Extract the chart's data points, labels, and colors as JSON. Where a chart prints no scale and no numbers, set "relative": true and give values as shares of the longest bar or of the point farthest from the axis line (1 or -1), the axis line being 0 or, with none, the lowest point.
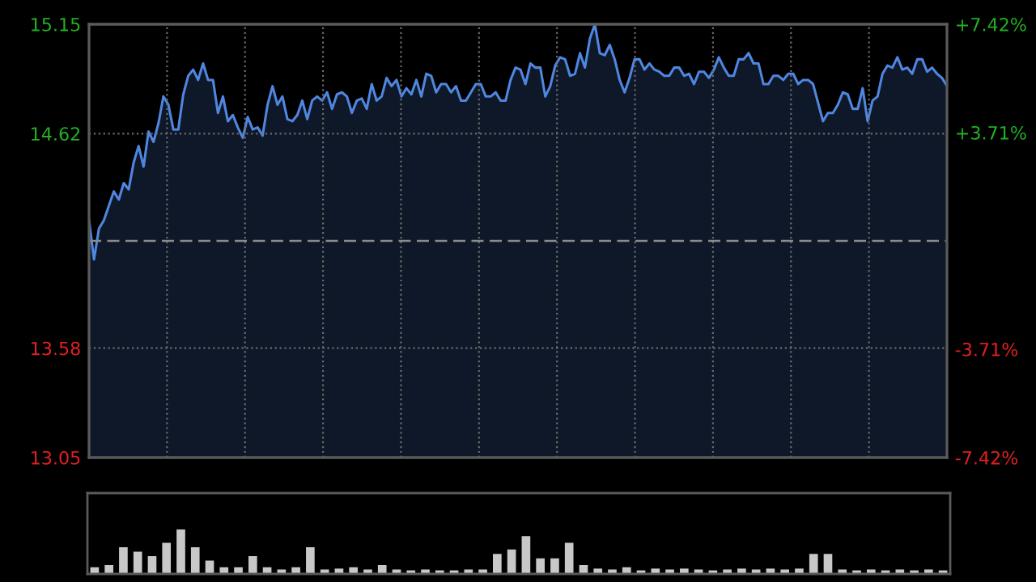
{
  "chart_data": [
    {
      "type": "area",
      "categories": [
        null,
        null,
        null,
        null,
        null,
        null,
        null,
        null,
        null,
        null,
        null,
        null,
        null,
        null,
        null,
        null,
        null,
        null,
        null,
        null,
        null,
        null,
        null,
        null,
        null,
        null,
        null,
        null,
        null,
        null,
        null,
        null,
        null,
        null,
        null,
        null,
        null,
        null,
        null,
        null,
        null,
        null,
        null,
        null,
        null,
        null,
        null,
        null,
        null,
        null,
        null,
        null,
        null,
        null,
        null,
        null,
        null,
        null,
        null,
        null,
        null,
        null,
        null,
        null,
        null,
        null,
        null,
        null,
        null,
        null,
        null,
        null,
        null,
        null,
        null,
        null,
        null,
        null,
        null,
        null,
        null,
        null,
        null,
        null,
        null,
        null,
        null,
        null,
        null,
        null,
        null,
        null,
        null,
        null,
        null,
        null,
        null,
        null,
        null,
        null,
        null,
        null,
        null,
        null,
        null,
        null,
        null,
        null,
        null,
        null,
        null,
        null,
        null,
        null,
        null,
        null,
        null,
        null,
        null,
        null,
        null,
        null,
        null,
        null,
        null,
        null,
        null,
        null,
        null,
        null,
        null,
        null,
        null,
        null,
        null,
        null,
        null,
        null,
        null,
        null,
        null,
        null,
        null,
        null,
        null,
        null,
        null,
        null,
        null,
        null,
        null,
        null,
        null,
        null,
        null,
        null,
        null,
        null,
        null,
        null,
        null,
        null,
        null,
        null,
        null,
        null,
        null,
        null,
        null,
        null,
        null,
        null,
        null,
        null
      ],
      "series": [
        {
          "color": "#4f86e0",
          "values": [
            14.2,
            14.01,
            14.16,
            14.2,
            14.27,
            14.34,
            14.3,
            14.38,
            14.35,
            14.48,
            14.56,
            14.46,
            14.63,
            14.58,
            14.67,
            14.8,
            14.76,
            14.64,
            14.64,
            14.81,
            14.9,
            14.93,
            14.88,
            14.96,
            14.88,
            14.88,
            14.72,
            14.8,
            14.68,
            14.71,
            14.65,
            14.6,
            14.7,
            14.64,
            14.65,
            14.61,
            14.76,
            14.85,
            14.76,
            14.8,
            14.69,
            14.68,
            14.71,
            14.78,
            14.69,
            14.78,
            14.8,
            14.78,
            14.82,
            14.74,
            14.81,
            14.82,
            14.8,
            14.72,
            14.78,
            14.79,
            14.74,
            14.86,
            14.78,
            14.8,
            14.89,
            14.85,
            14.88,
            14.8,
            14.84,
            14.81,
            14.88,
            14.8,
            14.91,
            14.9,
            14.82,
            14.86,
            14.86,
            14.82,
            14.85,
            14.78,
            14.78,
            14.82,
            14.86,
            14.86,
            14.8,
            14.8,
            14.82,
            14.78,
            14.78,
            14.88,
            14.94,
            14.93,
            14.86,
            14.96,
            14.94,
            14.94,
            14.8,
            14.85,
            14.95,
            14.99,
            14.98,
            14.9,
            14.91,
            15.01,
            14.94,
            15.08,
            15.15,
            15.01,
            15.0,
            15.05,
            14.98,
            14.88,
            14.82,
            14.89,
            14.98,
            14.98,
            14.93,
            14.96,
            14.93,
            14.92,
            14.9,
            14.9,
            14.94,
            14.94,
            14.9,
            14.91,
            14.86,
            14.92,
            14.92,
            14.89,
            14.93,
            14.99,
            14.94,
            14.9,
            14.9,
            14.98,
            14.98,
            15.01,
            14.96,
            14.96,
            14.86,
            14.86,
            14.9,
            14.9,
            14.88,
            14.91,
            14.91,
            14.86,
            14.88,
            14.88,
            14.86,
            14.77,
            14.68,
            14.72,
            14.72,
            14.76,
            14.82,
            14.81,
            14.74,
            14.74,
            14.84,
            14.68,
            14.78,
            14.8,
            14.91,
            14.95,
            14.94,
            14.99,
            14.93,
            14.94,
            14.91,
            14.98,
            14.98,
            14.92,
            14.94,
            14.91,
            14.89,
            14.85
          ]
        }
      ],
      "ylim": [
        13.05,
        15.15
      ],
      "yticks": [
        13.05,
        13.58,
        14.62,
        15.15
      ],
      "y2lim": [
        -7.42,
        7.42
      ],
      "y2ticks": [
        {
          "value": -7.42,
          "label": "-7.42%"
        },
        {
          "value": -3.71,
          "label": "-3.71%"
        },
        {
          "value": 3.71,
          "label": "+3.71%"
        },
        {
          "value": 7.42,
          "label": "+7.42%"
        }
      ],
      "ref_lines": [
        {
          "axis": "y",
          "value": 14.1,
          "color": "#8a8a8a",
          "line_style": "dashed"
        }
      ],
      "grid": true,
      "tick_labels": "y"
    },
    {
      "type": "bar",
      "relative": true,
      "tick_labels": false,
      "categories": [
        null,
        null,
        null,
        null,
        null,
        null,
        null,
        null,
        null,
        null,
        null,
        null,
        null,
        null,
        null,
        null,
        null,
        null,
        null,
        null,
        null,
        null,
        null,
        null,
        null,
        null,
        null,
        null,
        null,
        null,
        null,
        null,
        null,
        null,
        null,
        null,
        null,
        null,
        null,
        null,
        null,
        null,
        null,
        null,
        null,
        null,
        null,
        null,
        null,
        null,
        null,
        null,
        null,
        null,
        null,
        null,
        null,
        null,
        null,
        null
      ],
      "series": [
        {
          "color": "#c8c8c8",
          "values": [
            0.15,
            0.2,
            0.6,
            0.5,
            0.4,
            0.7,
            1.0,
            0.6,
            0.3,
            0.15,
            0.15,
            0.4,
            0.15,
            0.1,
            0.15,
            0.6,
            0.1,
            0.12,
            0.15,
            0.1,
            0.2,
            0.1,
            0.08,
            0.1,
            0.08,
            0.08,
            0.1,
            0.1,
            0.45,
            0.55,
            0.85,
            0.35,
            0.35,
            0.7,
            0.2,
            0.12,
            0.1,
            0.15,
            0.08,
            0.12,
            0.1,
            0.12,
            0.1,
            0.08,
            0.1,
            0.12,
            0.1,
            0.12,
            0.1,
            0.12,
            0.45,
            0.45,
            0.1,
            0.08,
            0.1,
            0.08,
            0.1,
            0.08,
            0.1,
            0.08
          ]
        }
      ]
    }
  ]
}
